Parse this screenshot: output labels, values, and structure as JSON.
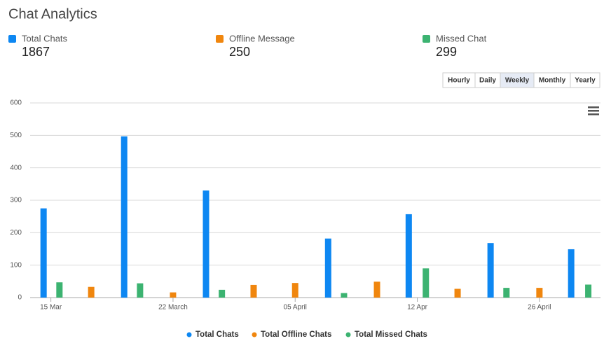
{
  "header": {
    "title": "Chat Analytics"
  },
  "stats": [
    {
      "label": "Total Chats",
      "value": "1867",
      "color": "#0d87f2"
    },
    {
      "label": "Offline Message",
      "value": "250",
      "color": "#f0860e"
    },
    {
      "label": "Missed Chat",
      "value": "299",
      "color": "#3cb371"
    }
  ],
  "buttons": [
    "Hourly",
    "Daily",
    "Weekly",
    "Monthly",
    "Yearly"
  ],
  "active_button": "Weekly",
  "chart_data": {
    "type": "bar",
    "xlim": [
      0.83,
      5.5
    ],
    "xticks": [
      {
        "value": 1,
        "label": "15 Mar"
      },
      {
        "value": 2,
        "label": "22 March"
      },
      {
        "value": 3,
        "label": "05 April"
      },
      {
        "value": 4,
        "label": "12 Apr"
      },
      {
        "value": 5,
        "label": "26 April"
      }
    ],
    "ylim": [
      0,
      600
    ],
    "yticks": [
      0,
      100,
      200,
      300,
      400,
      500,
      600
    ],
    "grid": true,
    "series": [
      {
        "name": "Total Chats",
        "color": "#0d87f2",
        "x": [
          0.94,
          1.6,
          2.27,
          3.27,
          3.93,
          4.6,
          5.26
        ],
        "values": [
          275,
          497,
          330,
          182,
          257,
          168,
          149
        ]
      },
      {
        "name": "Total Offline Chats",
        "color": "#f0860e",
        "x": [
          1.33,
          2.0,
          2.66,
          3.0,
          3.67,
          4.33,
          5.0
        ],
        "values": [
          33,
          16,
          39,
          45,
          49,
          27,
          30
        ]
      },
      {
        "name": "Total Missed Chats",
        "color": "#3cb371",
        "x": [
          1.07,
          1.73,
          2.4,
          3.4,
          4.07,
          4.73,
          5.4
        ],
        "values": [
          47,
          44,
          24,
          14,
          90,
          30,
          40
        ]
      }
    ]
  }
}
